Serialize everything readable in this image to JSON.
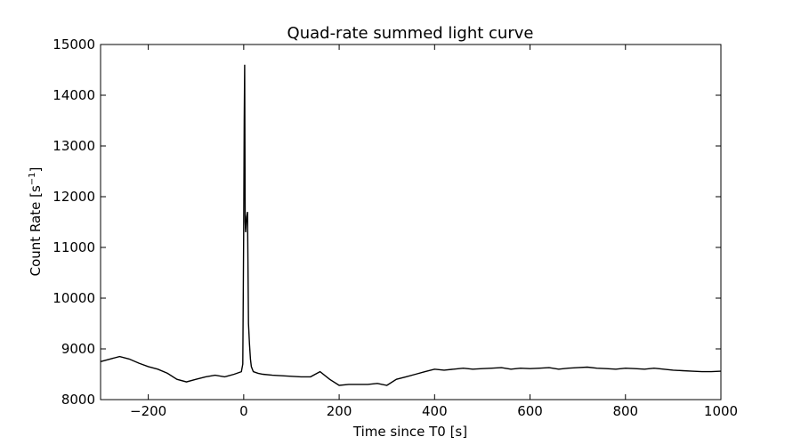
{
  "chart_data": {
    "type": "line",
    "title": "Quad-rate summed light curve",
    "xlabel": "Time since T0 [s]",
    "ylabel_text": "Count Rate [s",
    "ylabel_sup": "−1",
    "ylabel_end": "]",
    "xlim": [
      -300,
      1000
    ],
    "ylim": [
      8000,
      15000
    ],
    "xticks": [
      -200,
      0,
      200,
      400,
      600,
      800,
      1000
    ],
    "xtick_labels": [
      "−200",
      "0",
      "200",
      "400",
      "600",
      "800",
      "1000"
    ],
    "yticks": [
      8000,
      9000,
      10000,
      11000,
      12000,
      13000,
      14000,
      15000
    ],
    "ytick_labels": [
      "8000",
      "9000",
      "10000",
      "11000",
      "12000",
      "13000",
      "14000",
      "15000"
    ],
    "grid": false,
    "line_color": "#000000",
    "series": [
      {
        "x": [
          -300,
          -280,
          -260,
          -240,
          -220,
          -200,
          -180,
          -160,
          -140,
          -120,
          -100,
          -80,
          -60,
          -40,
          -20,
          -5,
          -2,
          0,
          1,
          2,
          3,
          4,
          6,
          8,
          10,
          12,
          14,
          16,
          20,
          30,
          40,
          60,
          80,
          100,
          120,
          140,
          160,
          180,
          200,
          220,
          240,
          260,
          280,
          300,
          320,
          340,
          360,
          380,
          400,
          420,
          440,
          460,
          480,
          500,
          520,
          540,
          560,
          580,
          600,
          620,
          640,
          660,
          680,
          700,
          720,
          740,
          760,
          780,
          800,
          820,
          840,
          860,
          880,
          900,
          920,
          940,
          960,
          980,
          1000
        ],
        "y": [
          8750,
          8800,
          8850,
          8800,
          8720,
          8650,
          8600,
          8520,
          8400,
          8350,
          8400,
          8450,
          8480,
          8450,
          8500,
          8550,
          8700,
          11300,
          13500,
          14600,
          11500,
          11300,
          11600,
          11700,
          9500,
          9100,
          8800,
          8650,
          8550,
          8520,
          8500,
          8480,
          8470,
          8460,
          8450,
          8450,
          8550,
          8400,
          8280,
          8300,
          8300,
          8300,
          8320,
          8280,
          8400,
          8450,
          8500,
          8550,
          8600,
          8580,
          8600,
          8620,
          8600,
          8610,
          8620,
          8630,
          8600,
          8620,
          8610,
          8620,
          8630,
          8600,
          8620,
          8630,
          8640,
          8620,
          8610,
          8600,
          8620,
          8610,
          8600,
          8620,
          8600,
          8580,
          8570,
          8560,
          8550,
          8550,
          8560
        ]
      }
    ]
  }
}
